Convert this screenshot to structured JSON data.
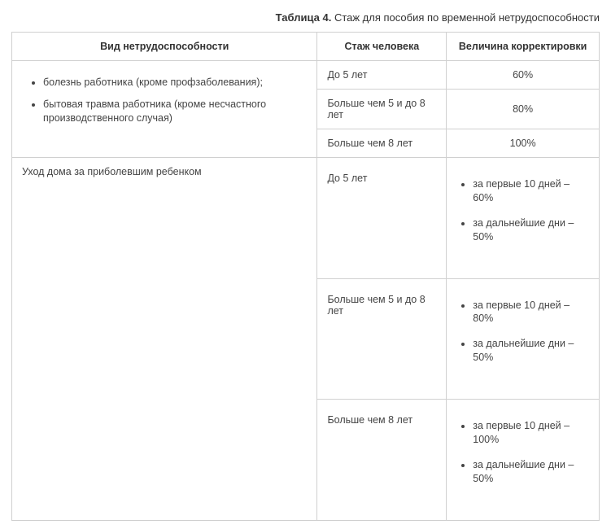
{
  "caption": {
    "label": "Таблица 4.",
    "text": "Стаж для пособия по временной нетрудоспособности"
  },
  "headers": {
    "c1": "Вид нетрудоспособности",
    "c2": "Стаж человека",
    "c3": "Величина корректировки"
  },
  "group1": {
    "bullets": [
      "болезнь работника (кроме профзаболевания);",
      "бытовая травма работника (кроме несчастного производственного случая)"
    ],
    "rows": [
      {
        "tenure": "До 5 лет",
        "adj": "60%"
      },
      {
        "tenure": "Больше чем 5 и до 8 лет",
        "adj": "80%"
      },
      {
        "tenure": "Больше чем 8 лет",
        "adj": "100%"
      }
    ]
  },
  "group2": {
    "title": "Уход дома за приболевшим ребенком",
    "rows": [
      {
        "tenure": "До 5 лет",
        "adj": [
          "за первые 10 дней – 60%",
          "за дальнейшие дни – 50%"
        ]
      },
      {
        "tenure": "Больше чем 5 и до 8 лет",
        "adj": [
          "за первые 10 дней – 80%",
          "за дальнейшие дни – 50%"
        ]
      },
      {
        "tenure": "Больше чем 8 лет",
        "adj": [
          "за первые 10 дней – 100%",
          "за дальнейшие дни – 50%"
        ]
      }
    ]
  }
}
